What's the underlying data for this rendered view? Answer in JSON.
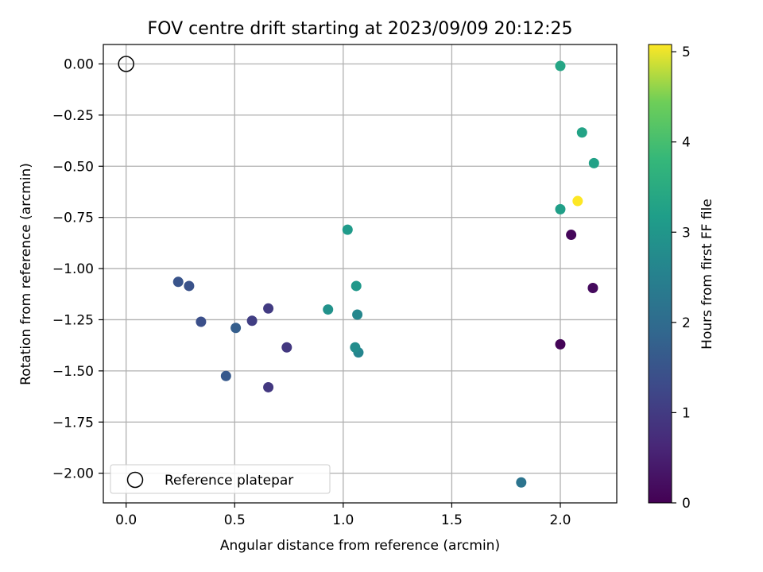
{
  "chart_data": {
    "type": "scatter",
    "title": "FOV centre drift starting at 2023/09/09 20:12:25",
    "xlabel": "Angular distance from reference (arcmin)",
    "ylabel": "Rotation from reference (arcmin)",
    "xlim": [
      -0.105,
      2.26
    ],
    "ylim": [
      -2.145,
      0.095
    ],
    "x_ticks": [
      0.0,
      0.5,
      1.0,
      1.5,
      2.0
    ],
    "x_tick_labels": [
      "0.0",
      "0.5",
      "1.0",
      "1.5",
      "2.0"
    ],
    "y_ticks": [
      0.0,
      -0.25,
      -0.5,
      -0.75,
      -1.0,
      -1.25,
      -1.5,
      -1.75,
      -2.0
    ],
    "y_tick_labels": [
      "0.00",
      "−0.25",
      "−0.50",
      "−0.75",
      "−1.00",
      "−1.25",
      "−1.50",
      "−1.75",
      "−2.00"
    ],
    "grid": true,
    "legend": {
      "entries": [
        "Reference platepar"
      ],
      "placement": "lower left"
    },
    "reference_point": {
      "x": 0.0,
      "y": 0.0,
      "marker": "open-circle",
      "label": "Reference platepar"
    },
    "colorbar": {
      "label": "Hours from first FF file",
      "colormap": "viridis",
      "range": [
        0,
        5.08
      ],
      "ticks": [
        0,
        1,
        2,
        3,
        4,
        5
      ],
      "tick_labels": [
        "0",
        "1",
        "2",
        "3",
        "4",
        "5"
      ]
    },
    "points": [
      {
        "x": 2.0,
        "y": -1.37,
        "hours": 0.05
      },
      {
        "x": 2.05,
        "y": -0.835,
        "hours": 0.1
      },
      {
        "x": 2.15,
        "y": -1.095,
        "hours": 0.15
      },
      {
        "x": 0.655,
        "y": -1.58,
        "hours": 0.95
      },
      {
        "x": 0.74,
        "y": -1.385,
        "hours": 0.95
      },
      {
        "x": 0.655,
        "y": -1.195,
        "hours": 1.0
      },
      {
        "x": 0.58,
        "y": -1.255,
        "hours": 1.05
      },
      {
        "x": 0.345,
        "y": -1.26,
        "hours": 1.4
      },
      {
        "x": 0.29,
        "y": -1.085,
        "hours": 1.45
      },
      {
        "x": 0.24,
        "y": -1.065,
        "hours": 1.5
      },
      {
        "x": 0.46,
        "y": -1.525,
        "hours": 1.6
      },
      {
        "x": 0.505,
        "y": -1.29,
        "hours": 1.7
      },
      {
        "x": 1.82,
        "y": -2.045,
        "hours": 2.2
      },
      {
        "x": 1.07,
        "y": -1.41,
        "hours": 2.6
      },
      {
        "x": 1.065,
        "y": -1.225,
        "hours": 2.65
      },
      {
        "x": 1.055,
        "y": -1.385,
        "hours": 2.8
      },
      {
        "x": 0.93,
        "y": -1.2,
        "hours": 2.9
      },
      {
        "x": 1.06,
        "y": -1.085,
        "hours": 3.05
      },
      {
        "x": 1.02,
        "y": -0.81,
        "hours": 3.1
      },
      {
        "x": 2.0,
        "y": -0.71,
        "hours": 3.2
      },
      {
        "x": 2.155,
        "y": -0.485,
        "hours": 3.25
      },
      {
        "x": 2.1,
        "y": -0.335,
        "hours": 3.3
      },
      {
        "x": 2.0,
        "y": -0.01,
        "hours": 3.35
      },
      {
        "x": 2.08,
        "y": -0.67,
        "hours": 5.08
      }
    ]
  }
}
